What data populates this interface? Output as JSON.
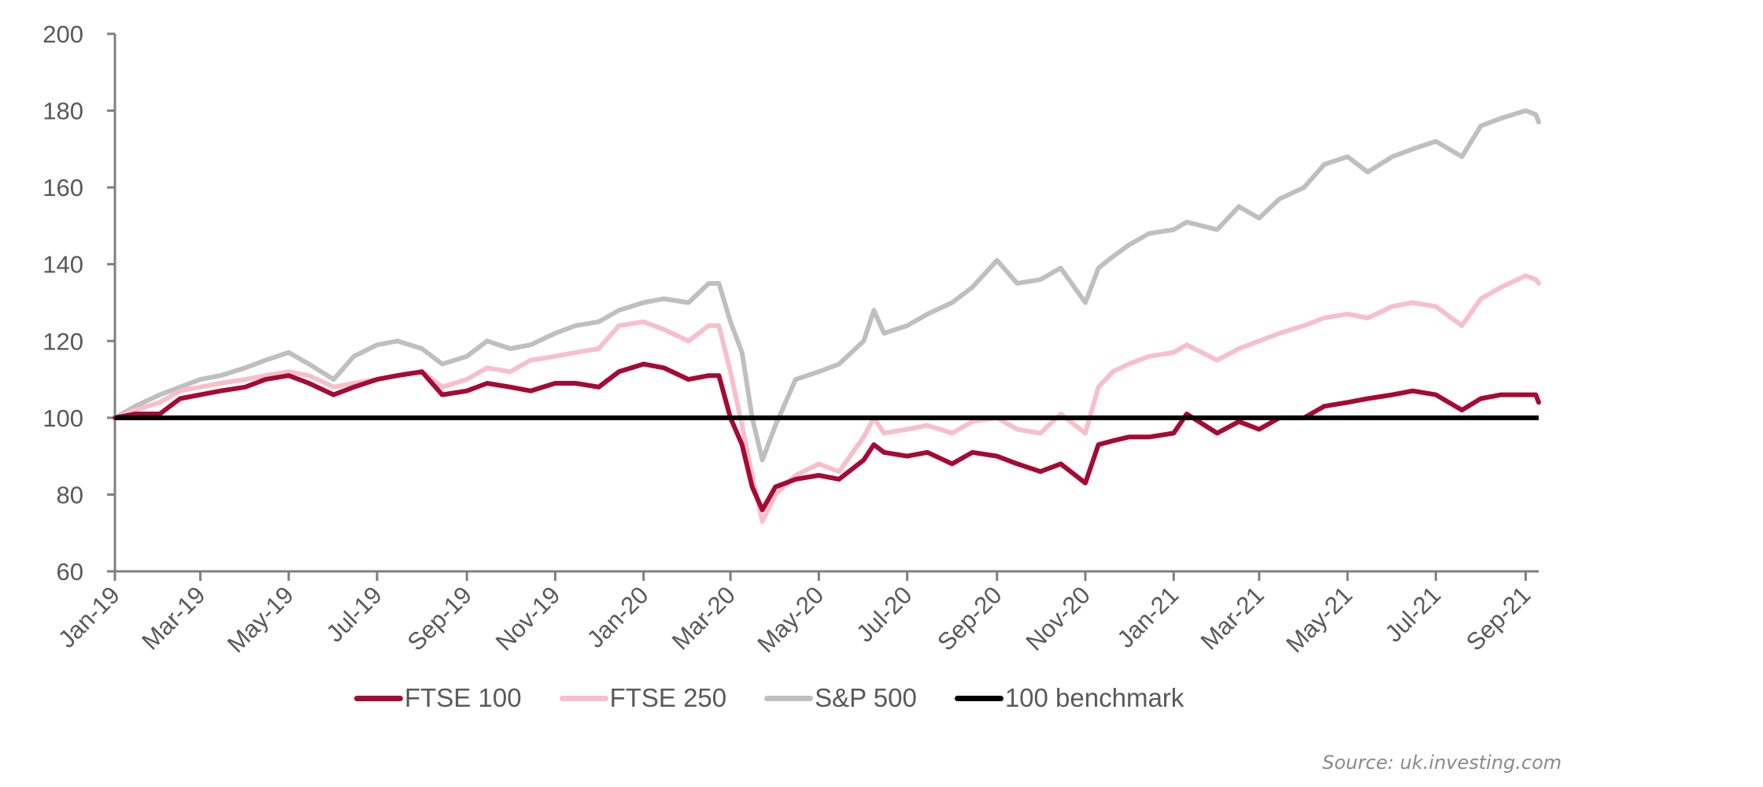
{
  "chart_data": {
    "type": "line",
    "title": "",
    "xlabel": "",
    "ylabel": "",
    "ylim": [
      60,
      200
    ],
    "yticks": [
      60,
      80,
      100,
      120,
      140,
      160,
      180,
      200
    ],
    "xlim": [
      "2019-01-01",
      "2021-09-10"
    ],
    "xticks": [
      {
        "date": "2019-01-01",
        "label": "Jan-19"
      },
      {
        "date": "2019-03-01",
        "label": "Mar-19"
      },
      {
        "date": "2019-05-01",
        "label": "May-19"
      },
      {
        "date": "2019-07-01",
        "label": "Jul-19"
      },
      {
        "date": "2019-09-01",
        "label": "Sep-19"
      },
      {
        "date": "2019-11-01",
        "label": "Nov-19"
      },
      {
        "date": "2020-01-01",
        "label": "Jan-20"
      },
      {
        "date": "2020-03-01",
        "label": "Mar-20"
      },
      {
        "date": "2020-05-01",
        "label": "May-20"
      },
      {
        "date": "2020-07-01",
        "label": "Jul-20"
      },
      {
        "date": "2020-09-01",
        "label": "Sep-20"
      },
      {
        "date": "2020-11-01",
        "label": "Nov-20"
      },
      {
        "date": "2021-01-01",
        "label": "Jan-21"
      },
      {
        "date": "2021-03-01",
        "label": "Mar-21"
      },
      {
        "date": "2021-05-01",
        "label": "May-21"
      },
      {
        "date": "2021-07-01",
        "label": "Jul-21"
      },
      {
        "date": "2021-09-01",
        "label": "Sep-21"
      }
    ],
    "grid": false,
    "legend_position": "bottom",
    "x": [
      "2019-01-01",
      "2019-01-15",
      "2019-02-01",
      "2019-02-15",
      "2019-03-01",
      "2019-03-15",
      "2019-04-01",
      "2019-04-15",
      "2019-05-01",
      "2019-05-15",
      "2019-06-01",
      "2019-06-15",
      "2019-07-01",
      "2019-07-15",
      "2019-08-01",
      "2019-08-15",
      "2019-09-01",
      "2019-09-15",
      "2019-10-01",
      "2019-10-15",
      "2019-11-01",
      "2019-11-15",
      "2019-12-01",
      "2019-12-15",
      "2020-01-01",
      "2020-01-15",
      "2020-02-01",
      "2020-02-15",
      "2020-02-22",
      "2020-03-01",
      "2020-03-09",
      "2020-03-16",
      "2020-03-23",
      "2020-04-01",
      "2020-04-15",
      "2020-05-01",
      "2020-05-15",
      "2020-06-01",
      "2020-06-08",
      "2020-06-15",
      "2020-07-01",
      "2020-07-15",
      "2020-08-01",
      "2020-08-15",
      "2020-09-01",
      "2020-09-15",
      "2020-10-01",
      "2020-10-15",
      "2020-11-01",
      "2020-11-10",
      "2020-11-20",
      "2020-12-01",
      "2020-12-15",
      "2021-01-01",
      "2021-01-10",
      "2021-01-31",
      "2021-02-15",
      "2021-03-01",
      "2021-03-15",
      "2021-04-01",
      "2021-04-15",
      "2021-05-01",
      "2021-05-15",
      "2021-06-01",
      "2021-06-15",
      "2021-07-01",
      "2021-07-19",
      "2021-08-01",
      "2021-08-15",
      "2021-09-01",
      "2021-09-08",
      "2021-09-10"
    ],
    "series": [
      {
        "name": "FTSE 100",
        "color": "#A50A34",
        "values": [
          100,
          101,
          101,
          105,
          106,
          107,
          108,
          110,
          111,
          109,
          106,
          108,
          110,
          111,
          112,
          106,
          107,
          109,
          108,
          107,
          109,
          109,
          108,
          112,
          114,
          113,
          110,
          111,
          111,
          100,
          93,
          82,
          76,
          82,
          84,
          85,
          84,
          89,
          93,
          91,
          90,
          91,
          88,
          91,
          90,
          88,
          86,
          88,
          83,
          93,
          94,
          95,
          95,
          96,
          101,
          96,
          99,
          97,
          100,
          100,
          103,
          104,
          105,
          106,
          107,
          106,
          102,
          105,
          106,
          106,
          106,
          104
        ]
      },
      {
        "name": "FTSE 250",
        "color": "#F7BFCC",
        "values": [
          100,
          102,
          104,
          107,
          108,
          109,
          110,
          111,
          112,
          111,
          108,
          109,
          110,
          111,
          112,
          108,
          110,
          113,
          112,
          115,
          116,
          117,
          118,
          124,
          125,
          123,
          120,
          124,
          124,
          112,
          98,
          85,
          73,
          80,
          85,
          88,
          86,
          95,
          100,
          96,
          97,
          98,
          96,
          99,
          100,
          97,
          96,
          101,
          96,
          108,
          112,
          114,
          116,
          117,
          119,
          115,
          118,
          120,
          122,
          124,
          126,
          127,
          126,
          129,
          130,
          129,
          124,
          131,
          134,
          137,
          136,
          135
        ]
      },
      {
        "name": "S&P 500",
        "color": "#BFBFBF",
        "values": [
          100,
          103,
          106,
          108,
          110,
          111,
          113,
          115,
          117,
          114,
          110,
          116,
          119,
          120,
          118,
          114,
          116,
          120,
          118,
          119,
          122,
          124,
          125,
          128,
          130,
          131,
          130,
          135,
          135,
          125,
          117,
          100,
          89,
          98,
          110,
          112,
          114,
          120,
          128,
          122,
          124,
          127,
          130,
          134,
          141,
          135,
          136,
          139,
          130,
          139,
          142,
          145,
          148,
          149,
          151,
          149,
          155,
          152,
          157,
          160,
          166,
          168,
          164,
          168,
          170,
          172,
          168,
          176,
          178,
          180,
          179,
          177
        ]
      },
      {
        "name": "100 benchmark",
        "color": "#000000",
        "constant": 100
      }
    ],
    "annotations": [],
    "source": "Source: uk.investing.com"
  }
}
